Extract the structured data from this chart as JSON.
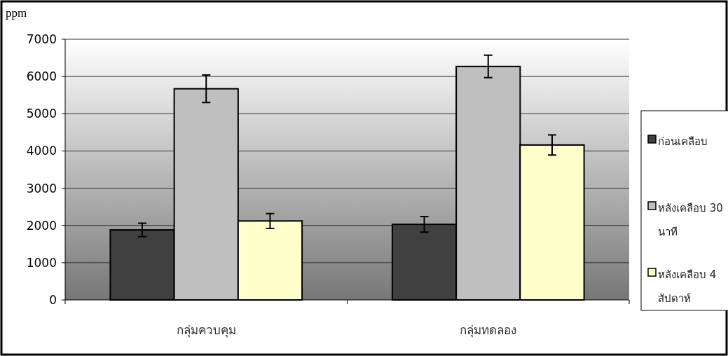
{
  "chart_data": {
    "type": "bar",
    "ylabel": "ppm",
    "categories": [
      "กลุ่มควบคุม",
      "กลุ่มทดลอง"
    ],
    "series": [
      {
        "name": "ก่อนเคลือบ",
        "color": "#404040",
        "values": [
          1880,
          2030
        ],
        "errors": [
          180,
          210
        ]
      },
      {
        "name": "หลังเคลือบ 30 นาที",
        "color": "#bfbfbf",
        "values": [
          5670,
          6270
        ],
        "errors": [
          370,
          300
        ]
      },
      {
        "name": "หลังเคลือบ 4 สัปดาห์",
        "color": "#ffffcc",
        "values": [
          2120,
          4160
        ],
        "errors": [
          200,
          270
        ]
      }
    ],
    "ylim": [
      0,
      7000
    ],
    "yticks": [
      0,
      1000,
      2000,
      3000,
      4000,
      5000,
      6000,
      7000
    ],
    "grid": "y",
    "legend": "right"
  }
}
